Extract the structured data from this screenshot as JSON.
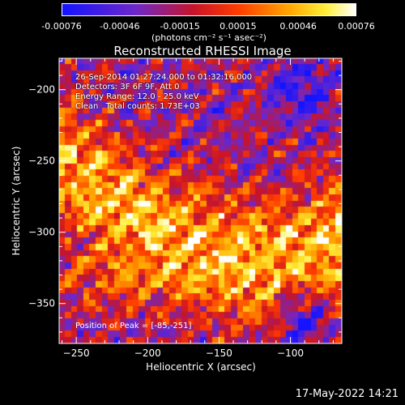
{
  "chart_data": {
    "type": "heatmap",
    "title": "Reconstructed RHESSI Image",
    "xlabel": "Heliocentric X (arcsec)",
    "ylabel": "Heliocentric Y (arcsec)",
    "xlim": [
      -262,
      -64
    ],
    "ylim": [
      -378,
      -178
    ],
    "xticks": [
      -250,
      -200,
      -150,
      -100
    ],
    "yticks": [
      -200,
      -250,
      -300,
      -350
    ],
    "colorbar": {
      "ticks": [
        "-0.00076",
        "-0.00046",
        "-0.00015",
        "0.00015",
        "0.00046",
        "0.00076"
      ],
      "units": "(photons cm⁻² s⁻¹ asec⁻²)",
      "range": [
        -0.00076,
        0.00076
      ],
      "colormap": "blue-purple-red-yellow-white"
    },
    "annotations": {
      "time": "26-Sep-2014 01:27:24.000 to 01:32:16.000",
      "detectors": "Detectors: 3F 6F 9F, Att 0",
      "energy": "Energy Range: 12.0 - 25.0 keV",
      "method": "Clean",
      "counts": "Total counts: 1.73E+03",
      "peak": "Position of Peak = [-85,-251]"
    },
    "peak_position": [
      -85,
      -251
    ]
  },
  "timestamp": "17-May-2022 14:21"
}
